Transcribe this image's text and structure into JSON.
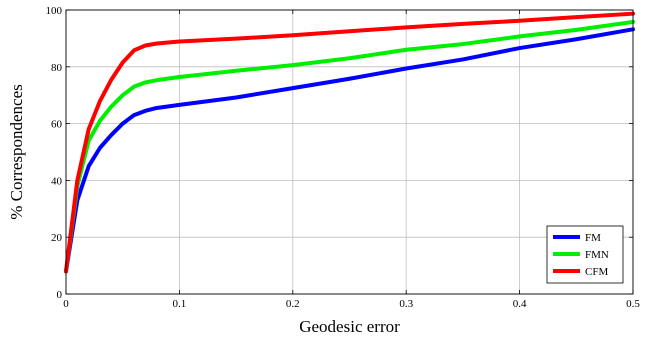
{
  "chart_data": {
    "type": "line",
    "xlabel": "Geodesic error",
    "ylabel": "% Correspondences",
    "xlim": [
      0,
      0.5
    ],
    "ylim": [
      0,
      100
    ],
    "xticks": [
      0,
      0.1,
      0.2,
      0.3,
      0.4,
      0.5
    ],
    "xtick_labels": [
      "0",
      "0.1",
      "0.2",
      "0.3",
      "0.4",
      "0.5"
    ],
    "yticks": [
      0,
      20,
      40,
      60,
      80,
      100
    ],
    "ytick_labels": [
      "0",
      "20",
      "40",
      "60",
      "80",
      "100"
    ],
    "grid": true,
    "legend_position": "bottom-right",
    "series": [
      {
        "name": "FM",
        "color": "#0000ff",
        "x": [
          0,
          0.01,
          0.02,
          0.03,
          0.04,
          0.05,
          0.06,
          0.07,
          0.08,
          0.1,
          0.15,
          0.2,
          0.25,
          0.3,
          0.35,
          0.4,
          0.45,
          0.5
        ],
        "y": [
          8,
          33,
          45,
          51.5,
          56,
          60,
          63,
          64.5,
          65.5,
          66.6,
          69.2,
          72.5,
          75.8,
          79.4,
          82.6,
          86.6,
          89.7,
          93.2
        ]
      },
      {
        "name": "FMN",
        "color": "#00ee00",
        "x": [
          0,
          0.01,
          0.02,
          0.03,
          0.04,
          0.05,
          0.06,
          0.07,
          0.08,
          0.1,
          0.15,
          0.2,
          0.25,
          0.3,
          0.35,
          0.4,
          0.45,
          0.5
        ],
        "y": [
          8,
          38,
          54,
          61,
          66,
          70,
          73,
          74.5,
          75.3,
          76.4,
          78.6,
          80.6,
          83,
          86,
          88,
          90.7,
          93,
          95.8
        ]
      },
      {
        "name": "CFM",
        "color": "#ff0000",
        "x": [
          0,
          0.01,
          0.02,
          0.03,
          0.04,
          0.05,
          0.06,
          0.07,
          0.08,
          0.1,
          0.15,
          0.2,
          0.25,
          0.3,
          0.35,
          0.4,
          0.45,
          0.5
        ],
        "y": [
          8,
          40,
          58,
          68,
          75.5,
          81.5,
          85.8,
          87.5,
          88.2,
          88.9,
          89.9,
          91.1,
          92.5,
          93.9,
          95.1,
          96.2,
          97.5,
          98.7
        ]
      }
    ]
  }
}
